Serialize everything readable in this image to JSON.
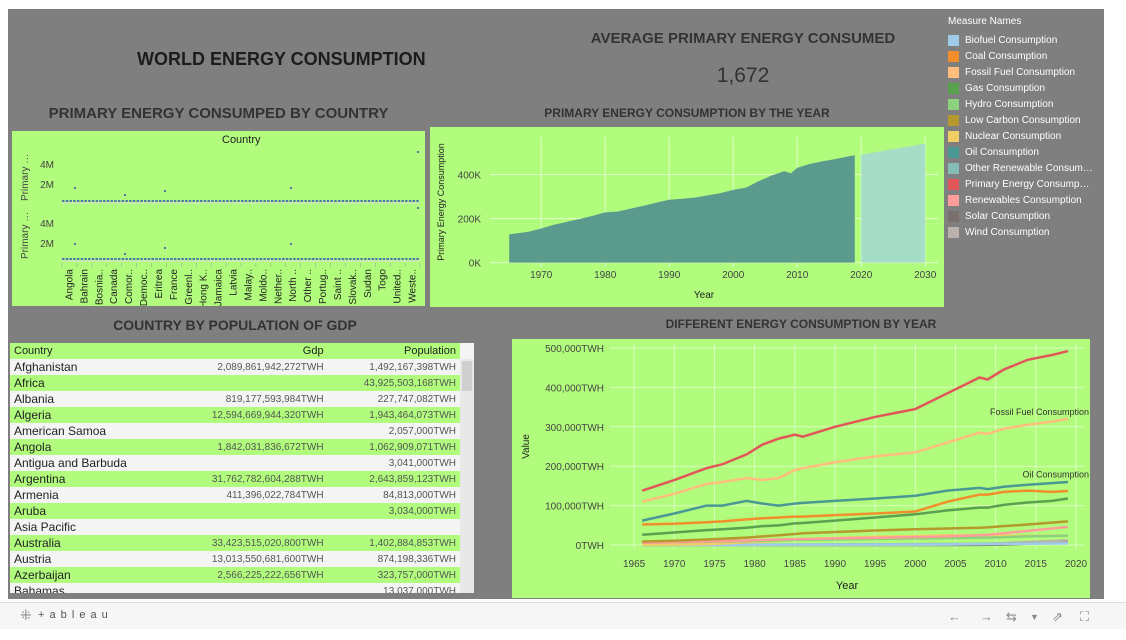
{
  "dashboard": {
    "main_title": "WORLD ENERGY CONSUMPTION",
    "avg_title": "AVERAGE PRIMARY ENERGY CONSUMED",
    "avg_value": "1,672",
    "country_chart_title": "PRIMARY ENERGY CONSUMPED BY COUNTRY",
    "year_chart_title": "PRIMARY ENERGY CONSUMPTION BY THE YEAR",
    "table_title": "COUNTRY BY POPULATION OF GDP",
    "multi_chart_title": "DIFFERENT ENERGY CONSUMPTION BY YEAR"
  },
  "legend": {
    "title": "Measure Names",
    "items": [
      {
        "label": "Biofuel Consumption",
        "color": "#a0cbe8"
      },
      {
        "label": "Coal Consumption",
        "color": "#f28e2b"
      },
      {
        "label": "Fossil Fuel Consumption",
        "color": "#ffbe7d"
      },
      {
        "label": "Gas Consumption",
        "color": "#59a14f"
      },
      {
        "label": "Hydro Consumption",
        "color": "#8cd17d"
      },
      {
        "label": "Low Carbon Consumption",
        "color": "#b6992d"
      },
      {
        "label": "Nuclear Consumption",
        "color": "#f1ce63"
      },
      {
        "label": "Oil Consumption",
        "color": "#499894"
      },
      {
        "label": "Other Renewable Consum…",
        "color": "#86bcb6"
      },
      {
        "label": "Primary Energy Consump…",
        "color": "#e15759"
      },
      {
        "label": "Renewables Consumption",
        "color": "#ff9d9a"
      },
      {
        "label": "Solar Consumption",
        "color": "#79706e"
      },
      {
        "label": "Wind Consumption",
        "color": "#bab0ac"
      }
    ]
  },
  "country_chart": {
    "header": "Country",
    "row_axis_label": "Primary …",
    "y_ticks": [
      "4M",
      "2M"
    ],
    "countries": [
      "Angola",
      "Bahrain",
      "Bosnia..",
      "Canada",
      "Comor..",
      "Democ..",
      "Eritrea",
      "France",
      "Greenl..",
      "Hong K..",
      "Jamaica",
      "Latvia",
      "Malay..",
      "Moldo..",
      "Nether..",
      "North ..",
      "Other ..",
      "Portug..",
      "Saint ..",
      "Slovak..",
      "Sudan",
      "Togo",
      "United..",
      "Weste.."
    ]
  },
  "table": {
    "headers": {
      "country": "Country",
      "gdp": "Gdp",
      "population": "Population"
    },
    "rows": [
      {
        "country": "Afghanistan",
        "gdp": "2,089,861,942,272TWH",
        "population": "1,492,167,398TWH"
      },
      {
        "country": "Africa",
        "gdp": "",
        "population": "43,925,503,168TWH"
      },
      {
        "country": "Albania",
        "gdp": "819,177,593,984TWH",
        "population": "227,747,082TWH"
      },
      {
        "country": "Algeria",
        "gdp": "12,594,669,944,320TWH",
        "population": "1,943,464,073TWH"
      },
      {
        "country": "American Samoa",
        "gdp": "",
        "population": "2,057,000TWH"
      },
      {
        "country": "Angola",
        "gdp": "1,842,031,836,672TWH",
        "population": "1,062,909,071TWH"
      },
      {
        "country": "Antigua and Barbuda",
        "gdp": "",
        "population": "3,041,000TWH"
      },
      {
        "country": "Argentina",
        "gdp": "31,762,782,604,288TWH",
        "population": "2,643,859,123TWH"
      },
      {
        "country": "Armenia",
        "gdp": "411,396,022,784TWH",
        "population": "84,813,000TWH"
      },
      {
        "country": "Aruba",
        "gdp": "",
        "population": "3,034,000TWH"
      },
      {
        "country": "Asia Pacific",
        "gdp": "",
        "population": ""
      },
      {
        "country": "Australia",
        "gdp": "33,423,515,020,800TWH",
        "population": "1,402,884,853TWH"
      },
      {
        "country": "Austria",
        "gdp": "13,013,550,681,600TWH",
        "population": "874,198,336TWH"
      },
      {
        "country": "Azerbaijan",
        "gdp": "2,566,225,222,656TWH",
        "population": "323,757,000TWH"
      },
      {
        "country": "Bahamas",
        "gdp": "",
        "population": "13,037,000TWH"
      }
    ]
  },
  "chart_data": [
    {
      "type": "area",
      "title": "PRIMARY ENERGY CONSUMPTION BY THE YEAR",
      "xlabel": "Year",
      "ylabel": "Primary Energy Consumption",
      "x_ticks": [
        1970,
        1980,
        1990,
        2000,
        2010,
        2020,
        2030
      ],
      "y_ticks": [
        "0K",
        "200K",
        "400K"
      ],
      "xlim": [
        1962,
        2032
      ],
      "ylim": [
        -20000,
        570000
      ],
      "series": [
        {
          "x": [
            1965,
            1968,
            1970,
            1972,
            1974,
            1976,
            1978,
            1980,
            1982,
            1984,
            1986,
            1988,
            1990,
            1992,
            1994,
            1996,
            1998,
            2000,
            2002,
            2004,
            2006,
            2008,
            2009,
            2010,
            2012,
            2014,
            2016,
            2018,
            2019
          ],
          "values": [
            128000,
            140000,
            155000,
            172000,
            185000,
            198000,
            212000,
            228000,
            232000,
            245000,
            258000,
            272000,
            285000,
            290000,
            295000,
            305000,
            315000,
            330000,
            340000,
            370000,
            395000,
            415000,
            405000,
            430000,
            448000,
            460000,
            470000,
            482000,
            487000
          ]
        },
        {
          "name": "forecast",
          "x": [
            2020,
            2030
          ],
          "values": [
            490000,
            540000
          ]
        }
      ],
      "grid": true
    },
    {
      "type": "line",
      "title": "DIFFERENT ENERGY CONSUMPTION BY YEAR",
      "xlabel": "Year",
      "ylabel": "Value",
      "x_ticks": [
        1965,
        1970,
        1975,
        1980,
        1985,
        1990,
        1995,
        2000,
        2005,
        2010,
        2015,
        2020
      ],
      "y_ticks": [
        "0TWH",
        "100,000TWH",
        "200,000TWH",
        "300,000TWH",
        "400,000TWH",
        "500,000TWH"
      ],
      "xlim": [
        1962,
        2021
      ],
      "ylim": [
        -10000,
        510000
      ],
      "annotations": [
        "Fossil Fuel Consumption",
        "Oil Consumption"
      ],
      "x": [
        1966,
        1970,
        1974,
        1976,
        1979,
        1981,
        1983,
        1985,
        1986,
        1990,
        1995,
        2000,
        2004,
        2008,
        2009,
        2011,
        2014,
        2017,
        2019
      ],
      "series": [
        {
          "name": "Primary Energy Consumption",
          "color": "#e15759",
          "values": [
            138000,
            165000,
            195000,
            205000,
            230000,
            255000,
            270000,
            280000,
            275000,
            300000,
            325000,
            345000,
            385000,
            425000,
            420000,
            445000,
            470000,
            482000,
            492000
          ]
        },
        {
          "name": "Fossil Fuel Consumption",
          "color": "#ffbe7d",
          "values": [
            110000,
            130000,
            155000,
            160000,
            170000,
            165000,
            170000,
            190000,
            195000,
            210000,
            225000,
            235000,
            260000,
            285000,
            282000,
            295000,
            305000,
            313000,
            320000
          ]
        },
        {
          "name": "Oil Consumption",
          "color": "#499894",
          "values": [
            62000,
            80000,
            100000,
            100000,
            112000,
            105000,
            100000,
            105000,
            107000,
            112000,
            118000,
            125000,
            138000,
            145000,
            142000,
            148000,
            153000,
            157000,
            160000
          ]
        },
        {
          "name": "Coal Consumption",
          "color": "#f28e2b",
          "values": [
            52000,
            54000,
            58000,
            60000,
            65000,
            68000,
            70000,
            72000,
            72000,
            76000,
            80000,
            85000,
            110000,
            128000,
            128000,
            135000,
            138000,
            135000,
            137000
          ]
        },
        {
          "name": "Gas Consumption",
          "color": "#59a14f",
          "values": [
            26000,
            32000,
            38000,
            40000,
            44000,
            48000,
            50000,
            55000,
            56000,
            62000,
            70000,
            78000,
            88000,
            95000,
            95000,
            102000,
            108000,
            112000,
            118000
          ]
        },
        {
          "name": "Low Carbon Consumption",
          "color": "#b6992d",
          "values": [
            9000,
            11000,
            14000,
            16000,
            19000,
            22000,
            25000,
            28000,
            30000,
            33000,
            37000,
            40000,
            42000,
            44000,
            45000,
            48000,
            52000,
            57000,
            60000
          ]
        },
        {
          "name": "Renewables Consumption",
          "color": "#ff9d9a",
          "values": [
            6000,
            7500,
            9000,
            10000,
            11500,
            13000,
            14000,
            15000,
            15500,
            17000,
            18500,
            20000,
            22000,
            25000,
            26000,
            30000,
            36000,
            42000,
            46000
          ]
        },
        {
          "name": "Hydro Consumption",
          "color": "#8cd17d",
          "values": [
            6000,
            7000,
            8500,
            9000,
            10000,
            11000,
            12000,
            13000,
            13000,
            14000,
            15500,
            16500,
            17500,
            19000,
            19000,
            20000,
            22000,
            23000,
            24000
          ]
        },
        {
          "name": "Nuclear Consumption",
          "color": "#f1ce63",
          "values": [
            500,
            1000,
            2500,
            4000,
            7000,
            9000,
            11000,
            14000,
            15000,
            18000,
            21000,
            23000,
            25000,
            25000,
            24500,
            24000,
            23000,
            23500,
            24000
          ]
        },
        {
          "name": "Biofuel Consumption",
          "color": "#a0cbe8",
          "values": [
            0,
            0,
            0,
            0,
            0,
            500,
            600,
            800,
            900,
            1000,
            1100,
            1200,
            1500,
            2500,
            2700,
            3000,
            3400,
            3800,
            4200
          ]
        },
        {
          "name": "Other Renewable Consumption",
          "color": "#86bcb6",
          "values": [
            300,
            400,
            500,
            600,
            800,
            1000,
            1200,
            1400,
            1500,
            1700,
            2000,
            2300,
            2700,
            3100,
            3200,
            3500,
            4000,
            4400,
            4700
          ]
        },
        {
          "name": "Wind Consumption",
          "color": "#bab0ac",
          "values": [
            0,
            0,
            0,
            0,
            0,
            0,
            0,
            0,
            0,
            100,
            200,
            500,
            1200,
            3000,
            3500,
            5000,
            7500,
            10000,
            12000
          ]
        },
        {
          "name": "Solar Consumption",
          "color": "#79706e",
          "values": [
            0,
            0,
            0,
            0,
            0,
            0,
            0,
            0,
            0,
            0,
            0,
            100,
            200,
            500,
            700,
            1500,
            3500,
            6000,
            7500
          ]
        }
      ]
    }
  ],
  "footer": {
    "logo": "+ a b l e a u"
  }
}
